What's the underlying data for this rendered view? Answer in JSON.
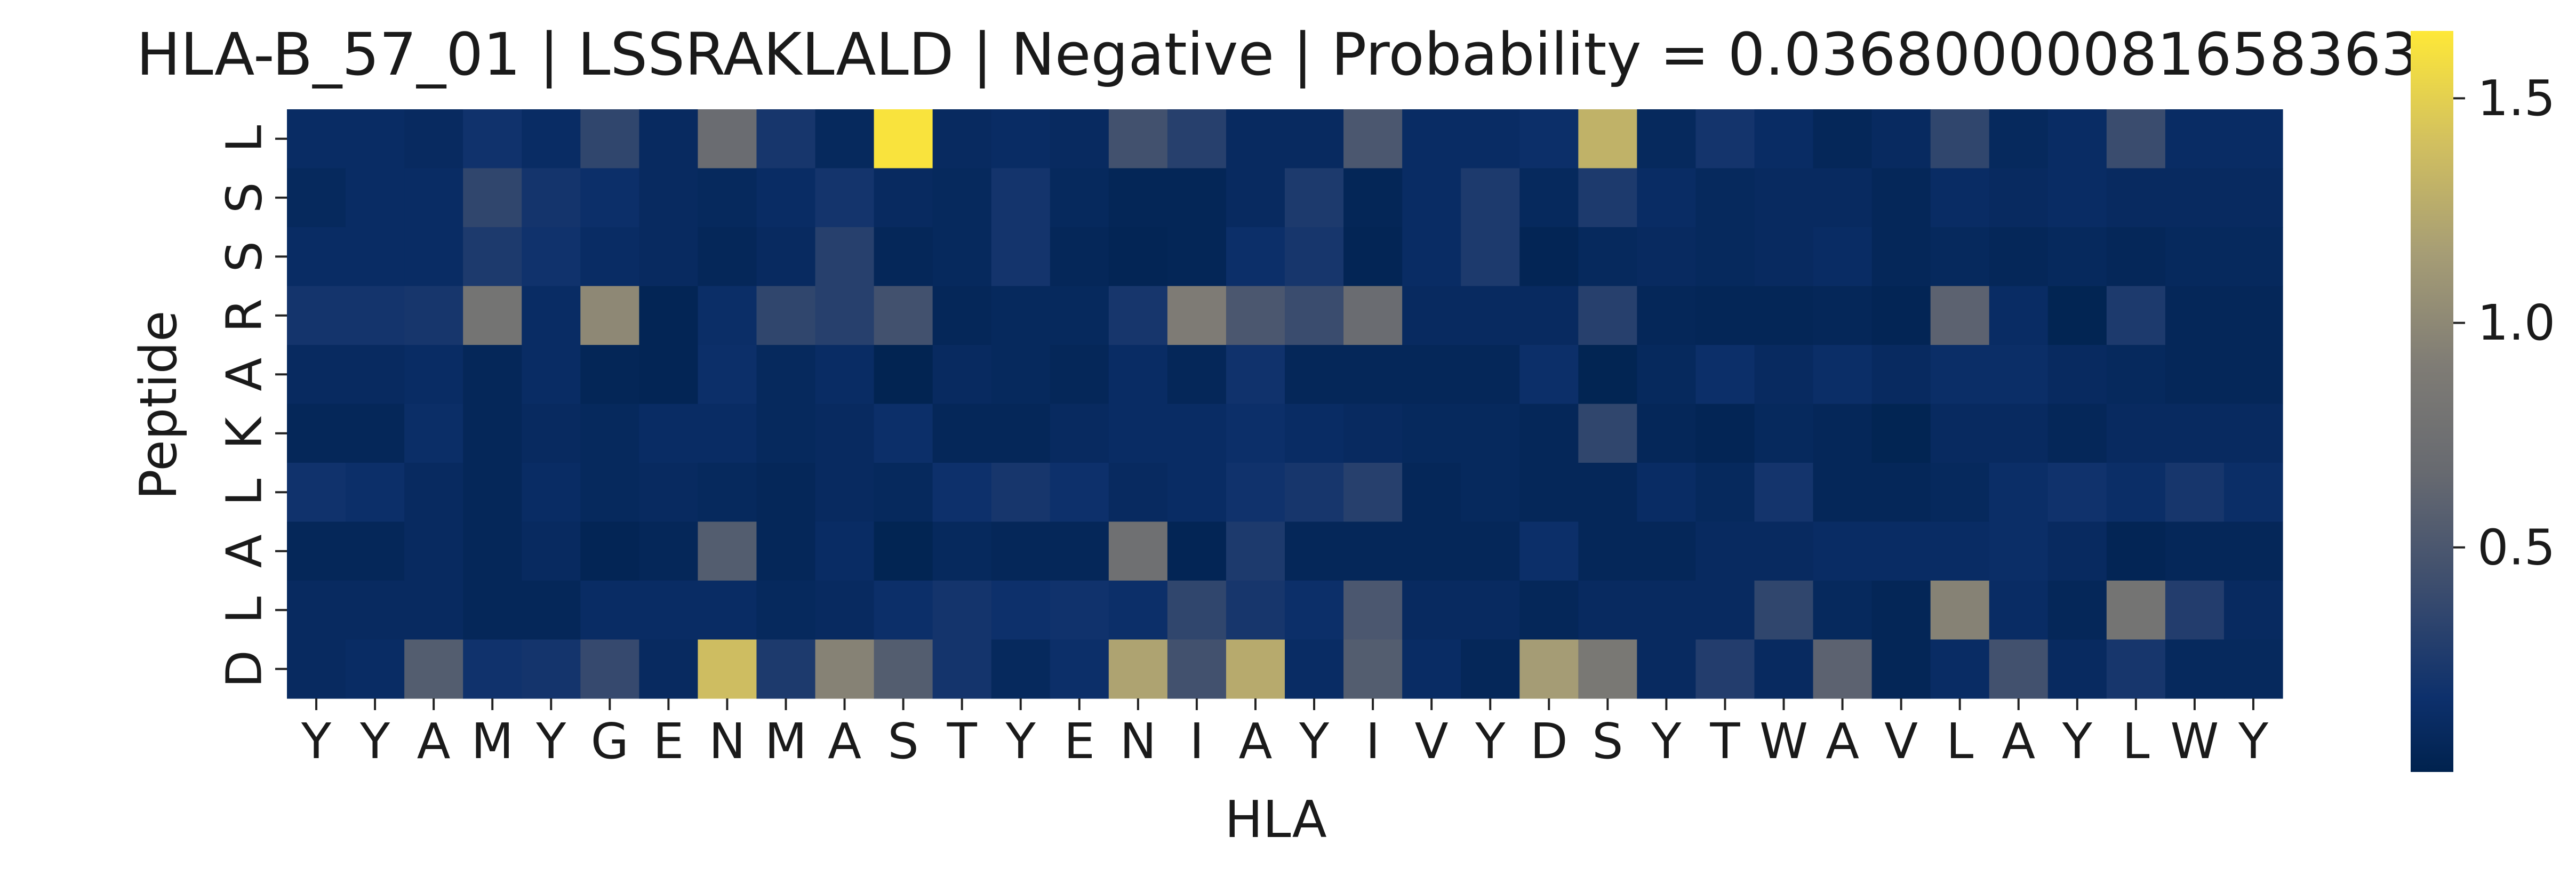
{
  "chart_data": {
    "type": "heatmap",
    "title": "HLA-B_57_01 | LSSRAKLALD | Negative | Probability = 0.03680000081658363",
    "xlabel": "HLA",
    "ylabel": "Peptide",
    "x_ticks": [
      "Y",
      "Y",
      "A",
      "M",
      "Y",
      "G",
      "E",
      "N",
      "M",
      "A",
      "S",
      "T",
      "Y",
      "E",
      "N",
      "I",
      "A",
      "Y",
      "I",
      "V",
      "Y",
      "D",
      "S",
      "Y",
      "T",
      "W",
      "A",
      "V",
      "L",
      "A",
      "Y",
      "L",
      "W",
      "Y"
    ],
    "y_ticks": [
      "L",
      "S",
      "S",
      "R",
      "A",
      "K",
      "L",
      "A",
      "L",
      "D"
    ],
    "colormap": "cividis",
    "colorbar": {
      "min": 0.0,
      "max": 1.65,
      "ticks": [
        0.5,
        1.0,
        1.5
      ],
      "tick_labels": [
        "0.5",
        "1.0",
        "1.5"
      ]
    },
    "values": [
      [
        0.12,
        0.12,
        0.1,
        0.18,
        0.12,
        0.35,
        0.1,
        0.7,
        0.22,
        0.08,
        1.62,
        0.1,
        0.12,
        0.1,
        0.45,
        0.3,
        0.1,
        0.1,
        0.5,
        0.12,
        0.12,
        0.15,
        1.3,
        0.08,
        0.2,
        0.12,
        0.06,
        0.1,
        0.35,
        0.08,
        0.12,
        0.4,
        0.12,
        0.12
      ],
      [
        0.08,
        0.12,
        0.12,
        0.35,
        0.2,
        0.15,
        0.1,
        0.08,
        0.12,
        0.2,
        0.1,
        0.08,
        0.2,
        0.08,
        0.05,
        0.05,
        0.1,
        0.25,
        0.05,
        0.12,
        0.25,
        0.08,
        0.25,
        0.12,
        0.08,
        0.1,
        0.1,
        0.06,
        0.12,
        0.1,
        0.12,
        0.1,
        0.1,
        0.1
      ],
      [
        0.12,
        0.12,
        0.12,
        0.25,
        0.18,
        0.12,
        0.1,
        0.06,
        0.1,
        0.3,
        0.06,
        0.08,
        0.2,
        0.06,
        0.04,
        0.05,
        0.15,
        0.22,
        0.04,
        0.12,
        0.25,
        0.04,
        0.08,
        0.1,
        0.08,
        0.1,
        0.12,
        0.06,
        0.08,
        0.06,
        0.08,
        0.06,
        0.08,
        0.08
      ],
      [
        0.2,
        0.2,
        0.22,
        0.8,
        0.12,
        1.0,
        0.04,
        0.14,
        0.35,
        0.3,
        0.45,
        0.06,
        0.08,
        0.08,
        0.22,
        0.9,
        0.5,
        0.4,
        0.7,
        0.1,
        0.1,
        0.1,
        0.3,
        0.06,
        0.05,
        0.05,
        0.06,
        0.04,
        0.6,
        0.12,
        0.03,
        0.25,
        0.06,
        0.06
      ],
      [
        0.1,
        0.1,
        0.12,
        0.06,
        0.12,
        0.05,
        0.04,
        0.15,
        0.08,
        0.12,
        0.02,
        0.1,
        0.08,
        0.06,
        0.12,
        0.06,
        0.18,
        0.06,
        0.06,
        0.06,
        0.06,
        0.15,
        0.03,
        0.08,
        0.15,
        0.1,
        0.14,
        0.1,
        0.14,
        0.14,
        0.1,
        0.08,
        0.06,
        0.06
      ],
      [
        0.06,
        0.06,
        0.14,
        0.06,
        0.1,
        0.08,
        0.12,
        0.12,
        0.08,
        0.1,
        0.15,
        0.06,
        0.06,
        0.1,
        0.12,
        0.12,
        0.15,
        0.12,
        0.1,
        0.08,
        0.08,
        0.06,
        0.35,
        0.06,
        0.04,
        0.08,
        0.06,
        0.03,
        0.1,
        0.1,
        0.06,
        0.1,
        0.1,
        0.1
      ],
      [
        0.18,
        0.15,
        0.1,
        0.06,
        0.12,
        0.08,
        0.1,
        0.08,
        0.06,
        0.1,
        0.08,
        0.16,
        0.22,
        0.16,
        0.1,
        0.12,
        0.18,
        0.22,
        0.3,
        0.06,
        0.08,
        0.06,
        0.06,
        0.12,
        0.08,
        0.2,
        0.06,
        0.06,
        0.08,
        0.14,
        0.18,
        0.14,
        0.22,
        0.14
      ],
      [
        0.06,
        0.06,
        0.1,
        0.06,
        0.1,
        0.04,
        0.06,
        0.55,
        0.06,
        0.12,
        0.03,
        0.08,
        0.06,
        0.06,
        0.75,
        0.04,
        0.25,
        0.06,
        0.06,
        0.06,
        0.06,
        0.15,
        0.06,
        0.06,
        0.1,
        0.1,
        0.12,
        0.12,
        0.12,
        0.14,
        0.1,
        0.04,
        0.06,
        0.06
      ],
      [
        0.1,
        0.1,
        0.1,
        0.06,
        0.06,
        0.12,
        0.12,
        0.12,
        0.08,
        0.1,
        0.15,
        0.2,
        0.16,
        0.18,
        0.15,
        0.35,
        0.22,
        0.15,
        0.5,
        0.1,
        0.1,
        0.06,
        0.1,
        0.1,
        0.1,
        0.35,
        0.08,
        0.05,
        0.95,
        0.12,
        0.06,
        0.8,
        0.28,
        0.1
      ],
      [
        0.1,
        0.12,
        0.55,
        0.18,
        0.2,
        0.38,
        0.1,
        1.38,
        0.25,
        0.95,
        0.55,
        0.2,
        0.08,
        0.15,
        1.2,
        0.45,
        1.25,
        0.12,
        0.55,
        0.12,
        0.06,
        1.15,
        0.85,
        0.1,
        0.28,
        0.1,
        0.6,
        0.05,
        0.12,
        0.45,
        0.1,
        0.22,
        0.08,
        0.08
      ]
    ]
  }
}
